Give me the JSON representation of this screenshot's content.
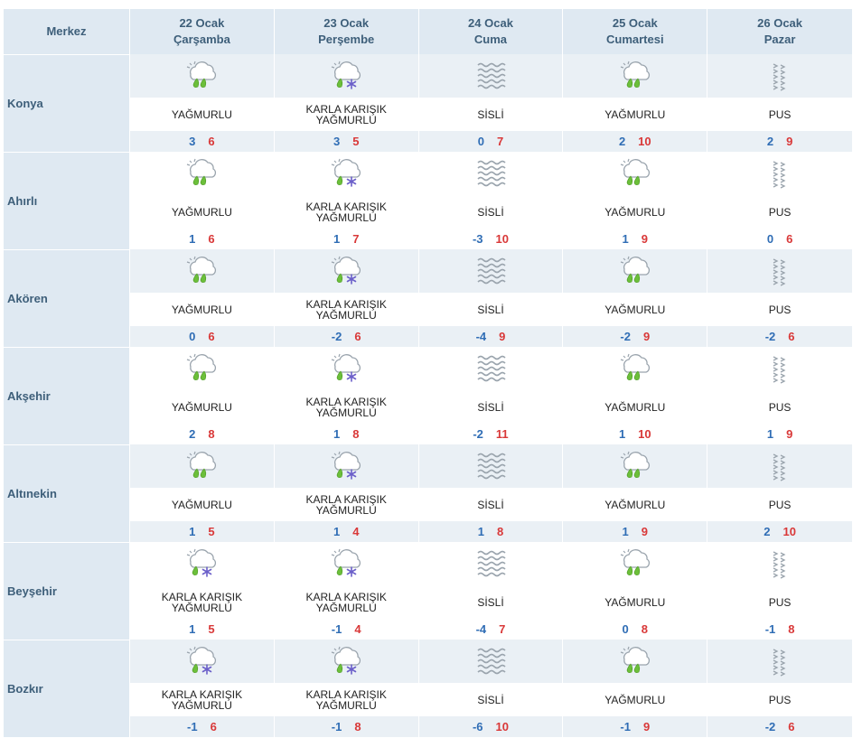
{
  "header": {
    "city_label": "Merkez",
    "days": [
      {
        "date": "22 Ocak",
        "weekday": "Çarşamba"
      },
      {
        "date": "23 Ocak",
        "weekday": "Perşembe"
      },
      {
        "date": "24 Ocak",
        "weekday": "Cuma"
      },
      {
        "date": "25 Ocak",
        "weekday": "Cumartesi"
      },
      {
        "date": "26 Ocak",
        "weekday": "Pazar"
      }
    ]
  },
  "cities": [
    {
      "name": "Konya",
      "days": [
        {
          "icon": "rain-icon",
          "desc": [
            "YAĞMURLU"
          ],
          "min": "3",
          "max": "6"
        },
        {
          "icon": "sleet-icon",
          "desc": [
            "KARLA KARIŞIK",
            "YAĞMURLU"
          ],
          "min": "3",
          "max": "5"
        },
        {
          "icon": "fog-icon",
          "desc": [
            "SİSLİ"
          ],
          "min": "0",
          "max": "7"
        },
        {
          "icon": "rain-icon",
          "desc": [
            "YAĞMURLU"
          ],
          "min": "2",
          "max": "10"
        },
        {
          "icon": "haze-icon",
          "desc": [
            "PUS"
          ],
          "min": "2",
          "max": "9"
        }
      ]
    },
    {
      "name": "Ahırlı",
      "days": [
        {
          "icon": "rain-icon",
          "desc": [
            "YAĞMURLU"
          ],
          "min": "1",
          "max": "6"
        },
        {
          "icon": "sleet-icon",
          "desc": [
            "KARLA KARIŞIK",
            "YAĞMURLU"
          ],
          "min": "1",
          "max": "7"
        },
        {
          "icon": "fog-icon",
          "desc": [
            "SİSLİ"
          ],
          "min": "-3",
          "max": "10"
        },
        {
          "icon": "rain-icon",
          "desc": [
            "YAĞMURLU"
          ],
          "min": "1",
          "max": "9"
        },
        {
          "icon": "haze-icon",
          "desc": [
            "PUS"
          ],
          "min": "0",
          "max": "6"
        }
      ]
    },
    {
      "name": "Akören",
      "days": [
        {
          "icon": "rain-icon",
          "desc": [
            "YAĞMURLU"
          ],
          "min": "0",
          "max": "6"
        },
        {
          "icon": "sleet-icon",
          "desc": [
            "KARLA KARIŞIK",
            "YAĞMURLU"
          ],
          "min": "-2",
          "max": "6"
        },
        {
          "icon": "fog-icon",
          "desc": [
            "SİSLİ"
          ],
          "min": "-4",
          "max": "9"
        },
        {
          "icon": "rain-icon",
          "desc": [
            "YAĞMURLU"
          ],
          "min": "-2",
          "max": "9"
        },
        {
          "icon": "haze-icon",
          "desc": [
            "PUS"
          ],
          "min": "-2",
          "max": "6"
        }
      ]
    },
    {
      "name": "Akşehir",
      "days": [
        {
          "icon": "rain-icon",
          "desc": [
            "YAĞMURLU"
          ],
          "min": "2",
          "max": "8"
        },
        {
          "icon": "sleet-icon",
          "desc": [
            "KARLA KARIŞIK",
            "YAĞMURLU"
          ],
          "min": "1",
          "max": "8"
        },
        {
          "icon": "fog-icon",
          "desc": [
            "SİSLİ"
          ],
          "min": "-2",
          "max": "11"
        },
        {
          "icon": "rain-icon",
          "desc": [
            "YAĞMURLU"
          ],
          "min": "1",
          "max": "10"
        },
        {
          "icon": "haze-icon",
          "desc": [
            "PUS"
          ],
          "min": "1",
          "max": "9"
        }
      ]
    },
    {
      "name": "Altınekin",
      "days": [
        {
          "icon": "rain-icon",
          "desc": [
            "YAĞMURLU"
          ],
          "min": "1",
          "max": "5"
        },
        {
          "icon": "sleet-icon",
          "desc": [
            "KARLA KARIŞIK",
            "YAĞMURLU"
          ],
          "min": "1",
          "max": "4"
        },
        {
          "icon": "fog-icon",
          "desc": [
            "SİSLİ"
          ],
          "min": "1",
          "max": "8"
        },
        {
          "icon": "rain-icon",
          "desc": [
            "YAĞMURLU"
          ],
          "min": "1",
          "max": "9"
        },
        {
          "icon": "haze-icon",
          "desc": [
            "PUS"
          ],
          "min": "2",
          "max": "10"
        }
      ]
    },
    {
      "name": "Beyşehir",
      "days": [
        {
          "icon": "sleet-icon",
          "desc": [
            "KARLA KARIŞIK",
            "YAĞMURLU"
          ],
          "min": "1",
          "max": "5"
        },
        {
          "icon": "sleet-icon",
          "desc": [
            "KARLA KARIŞIK",
            "YAĞMURLU"
          ],
          "min": "-1",
          "max": "4"
        },
        {
          "icon": "fog-icon",
          "desc": [
            "SİSLİ"
          ],
          "min": "-4",
          "max": "7"
        },
        {
          "icon": "rain-icon",
          "desc": [
            "YAĞMURLU"
          ],
          "min": "0",
          "max": "8"
        },
        {
          "icon": "haze-icon",
          "desc": [
            "PUS"
          ],
          "min": "-1",
          "max": "8"
        }
      ]
    },
    {
      "name": "Bozkır",
      "days": [
        {
          "icon": "sleet-icon",
          "desc": [
            "KARLA KARIŞIK",
            "YAĞMURLU"
          ],
          "min": "-1",
          "max": "6"
        },
        {
          "icon": "sleet-icon",
          "desc": [
            "KARLA KARIŞIK",
            "YAĞMURLU"
          ],
          "min": "-1",
          "max": "8"
        },
        {
          "icon": "fog-icon",
          "desc": [
            "SİSLİ"
          ],
          "min": "-6",
          "max": "10"
        },
        {
          "icon": "rain-icon",
          "desc": [
            "YAĞMURLU"
          ],
          "min": "-1",
          "max": "9"
        },
        {
          "icon": "haze-icon",
          "desc": [
            "PUS"
          ],
          "min": "-2",
          "max": "6"
        }
      ]
    }
  ],
  "colors": {
    "header_bg": "#dfe9f2",
    "header_text": "#3e5f7a",
    "min_temp": "#2f6db5",
    "max_temp": "#d93838",
    "rain_drop": "#6cbf3a",
    "snowflake": "#6b5fc9"
  }
}
